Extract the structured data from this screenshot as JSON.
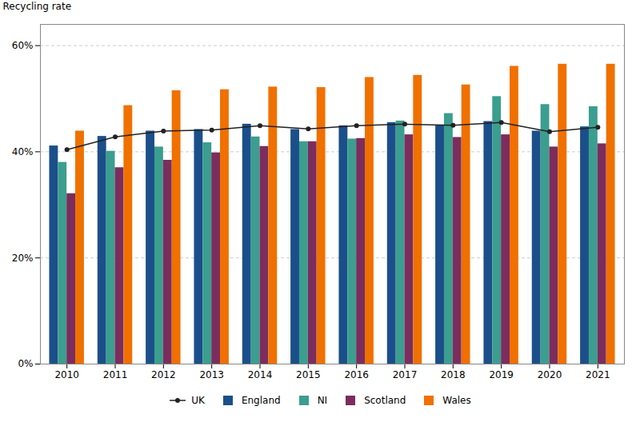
{
  "chart_data": {
    "type": "bar",
    "ylabel": "Recycling rate",
    "categories": [
      "2010",
      "2011",
      "2012",
      "2013",
      "2014",
      "2015",
      "2016",
      "2017",
      "2018",
      "2019",
      "2020",
      "2021"
    ],
    "series": [
      {
        "name": "UK",
        "type": "line",
        "marker": "circle",
        "color": "#222222",
        "values": [
          40.4,
          42.8,
          43.9,
          44.1,
          44.9,
          44.3,
          44.9,
          45.2,
          45.0,
          45.5,
          43.8,
          44.6
        ]
      },
      {
        "name": "England",
        "type": "bar",
        "color": "#1B4F8A",
        "values": [
          41.1,
          42.9,
          43.9,
          44.2,
          45.2,
          44.2,
          44.9,
          45.5,
          45.0,
          45.7,
          43.9,
          44.7
        ]
      },
      {
        "name": "NI",
        "type": "bar",
        "color": "#3B9E8E",
        "values": [
          38.0,
          40.1,
          40.9,
          41.7,
          42.8,
          41.9,
          42.4,
          45.8,
          47.2,
          50.4,
          48.9,
          48.5
        ]
      },
      {
        "name": "Scotland",
        "type": "bar",
        "color": "#7B2D5E",
        "values": [
          32.1,
          37.0,
          38.4,
          39.8,
          41.0,
          41.9,
          42.5,
          43.2,
          42.7,
          43.2,
          40.9,
          41.5
        ]
      },
      {
        "name": "Wales",
        "type": "bar",
        "color": "#F07000",
        "values": [
          43.9,
          48.7,
          51.5,
          51.7,
          52.2,
          52.1,
          54.0,
          54.4,
          52.6,
          56.1,
          56.5,
          56.5
        ]
      }
    ],
    "ylim": [
      0,
      64
    ],
    "yticks": [
      {
        "value": 0,
        "label": "0%"
      },
      {
        "value": 20,
        "label": "20%"
      },
      {
        "value": 40,
        "label": "40%"
      },
      {
        "value": 60,
        "label": "60%"
      }
    ],
    "grid": true,
    "legend": "bottom"
  }
}
